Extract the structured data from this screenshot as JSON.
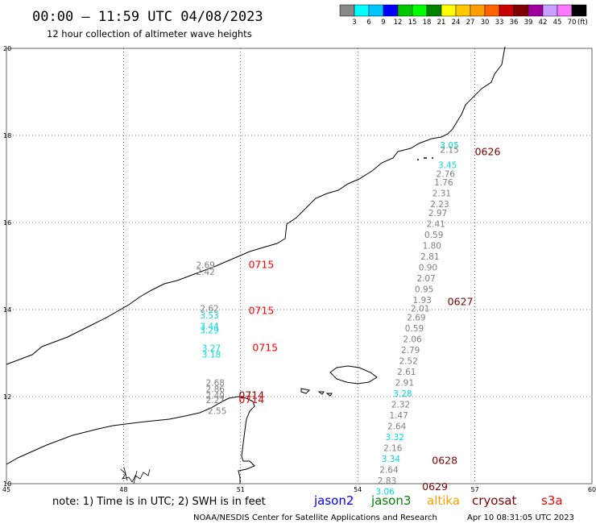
{
  "header": {
    "title": "00:00 – 11:59 UTC 04/08/2023",
    "subtitle": "12 hour collection of altimeter wave heights"
  },
  "colorbar": {
    "colors": [
      "#888888",
      "#00ffff",
      "#00c8ff",
      "#0000ff",
      "#00c800",
      "#00ff00",
      "#008000",
      "#ffff00",
      "#ffc800",
      "#ffa000",
      "#ff6400",
      "#c80000",
      "#800000",
      "#a000a0",
      "#c8a0ff",
      "#ff78ff",
      "#000000"
    ],
    "labels": [
      "3",
      "6",
      "9",
      "12",
      "15",
      "18",
      "21",
      "24",
      "27",
      "30",
      "33",
      "36",
      "39",
      "42",
      "45",
      "70"
    ],
    "unit": "(ft)"
  },
  "axes": {
    "x_ticks": [
      "45",
      "48",
      "51",
      "54",
      "57",
      "60"
    ],
    "y_ticks": [
      "20",
      "18",
      "16",
      "14",
      "12",
      "10"
    ],
    "lon_range": [
      45,
      60
    ],
    "lat_range": [
      10,
      20
    ]
  },
  "measurements": [
    {
      "lon": 56.35,
      "lat": 17.7,
      "v": "3.05",
      "c": "#00dcdc"
    },
    {
      "lon": 56.35,
      "lat": 17.6,
      "v": "2.15",
      "c": "#808080"
    },
    {
      "lon": 56.3,
      "lat": 17.25,
      "v": "3.45",
      "c": "#00dcdc"
    },
    {
      "lon": 56.25,
      "lat": 17.05,
      "v": "2.76",
      "c": "#808080"
    },
    {
      "lon": 56.2,
      "lat": 16.85,
      "v": "1.76",
      "c": "#808080"
    },
    {
      "lon": 56.15,
      "lat": 16.6,
      "v": "2.31",
      "c": "#808080"
    },
    {
      "lon": 56.1,
      "lat": 16.35,
      "v": "2.23",
      "c": "#808080"
    },
    {
      "lon": 56.05,
      "lat": 16.15,
      "v": "2.97",
      "c": "#808080"
    },
    {
      "lon": 56.0,
      "lat": 15.9,
      "v": "2.41",
      "c": "#808080"
    },
    {
      "lon": 55.95,
      "lat": 15.65,
      "v": "0.59",
      "c": "#808080"
    },
    {
      "lon": 55.9,
      "lat": 15.4,
      "v": "1.80",
      "c": "#808080"
    },
    {
      "lon": 55.85,
      "lat": 15.15,
      "v": "2.81",
      "c": "#808080"
    },
    {
      "lon": 55.8,
      "lat": 14.9,
      "v": "0.90",
      "c": "#808080"
    },
    {
      "lon": 55.75,
      "lat": 14.65,
      "v": "2.07",
      "c": "#808080"
    },
    {
      "lon": 55.7,
      "lat": 14.4,
      "v": "0.95",
      "c": "#808080"
    },
    {
      "lon": 55.65,
      "lat": 14.15,
      "v": "1.93",
      "c": "#808080"
    },
    {
      "lon": 55.6,
      "lat": 13.95,
      "v": "2.01",
      "c": "#808080"
    },
    {
      "lon": 55.5,
      "lat": 13.75,
      "v": "2.69",
      "c": "#808080"
    },
    {
      "lon": 55.45,
      "lat": 13.5,
      "v": "0.59",
      "c": "#808080"
    },
    {
      "lon": 55.4,
      "lat": 13.25,
      "v": "2.06",
      "c": "#808080"
    },
    {
      "lon": 55.35,
      "lat": 13.0,
      "v": "2.79",
      "c": "#808080"
    },
    {
      "lon": 55.3,
      "lat": 12.75,
      "v": "2.52",
      "c": "#808080"
    },
    {
      "lon": 55.25,
      "lat": 12.5,
      "v": "2.61",
      "c": "#808080"
    },
    {
      "lon": 55.2,
      "lat": 12.25,
      "v": "2.91",
      "c": "#808080"
    },
    {
      "lon": 55.15,
      "lat": 12.0,
      "v": "3.28",
      "c": "#00dcdc"
    },
    {
      "lon": 55.1,
      "lat": 11.75,
      "v": "2.32",
      "c": "#808080"
    },
    {
      "lon": 55.05,
      "lat": 11.5,
      "v": "1.47",
      "c": "#808080"
    },
    {
      "lon": 55.0,
      "lat": 11.25,
      "v": "2.64",
      "c": "#808080"
    },
    {
      "lon": 54.95,
      "lat": 11.0,
      "v": "3.32",
      "c": "#00dcdc"
    },
    {
      "lon": 54.9,
      "lat": 10.75,
      "v": "2.16",
      "c": "#808080"
    },
    {
      "lon": 54.85,
      "lat": 10.5,
      "v": "3.34",
      "c": "#00dcdc"
    },
    {
      "lon": 54.8,
      "lat": 10.25,
      "v": "2.64",
      "c": "#808080"
    },
    {
      "lon": 54.75,
      "lat": 10.0,
      "v": "2.83",
      "c": "#808080"
    },
    {
      "lon": 54.7,
      "lat": 9.75,
      "v": "3.06",
      "c": "#00dcdc"
    },
    {
      "lon": 50.1,
      "lat": 14.95,
      "v": "2.69",
      "c": "#808080"
    },
    {
      "lon": 50.1,
      "lat": 14.8,
      "v": "2.42",
      "c": "#808080"
    },
    {
      "lon": 50.2,
      "lat": 13.95,
      "v": "2.62",
      "c": "#808080"
    },
    {
      "lon": 50.2,
      "lat": 13.8,
      "v": "3.53",
      "c": "#00dcdc"
    },
    {
      "lon": 50.2,
      "lat": 13.55,
      "v": "3.44",
      "c": "#00dcdc"
    },
    {
      "lon": 50.2,
      "lat": 13.45,
      "v": "3.29",
      "c": "#00dcdc"
    },
    {
      "lon": 50.25,
      "lat": 13.05,
      "v": "3.27",
      "c": "#00dcdc"
    },
    {
      "lon": 50.25,
      "lat": 12.9,
      "v": "3.18",
      "c": "#00dcdc"
    },
    {
      "lon": 50.35,
      "lat": 12.25,
      "v": "2.68",
      "c": "#808080"
    },
    {
      "lon": 50.35,
      "lat": 12.1,
      "v": "2.86",
      "c": "#808080"
    },
    {
      "lon": 50.35,
      "lat": 11.95,
      "v": "2.49",
      "c": "#808080"
    },
    {
      "lon": 50.35,
      "lat": 11.85,
      "v": "2.27",
      "c": "#808080"
    },
    {
      "lon": 50.4,
      "lat": 11.6,
      "v": "2.55",
      "c": "#808080"
    }
  ],
  "pass_times": [
    {
      "lon": 57.0,
      "lat": 17.55,
      "t": "0626",
      "c": "#800000"
    },
    {
      "lon": 56.3,
      "lat": 14.1,
      "t": "0627",
      "c": "#800000"
    },
    {
      "lon": 55.9,
      "lat": 10.45,
      "t": "0628",
      "c": "#800000"
    },
    {
      "lon": 55.65,
      "lat": 9.85,
      "t": "0629",
      "c": "#800000"
    },
    {
      "lon": 51.2,
      "lat": 14.95,
      "t": "0715",
      "c": "#ff0000"
    },
    {
      "lon": 51.2,
      "lat": 13.9,
      "t": "0715",
      "c": "#ff0000"
    },
    {
      "lon": 51.3,
      "lat": 13.05,
      "t": "0715",
      "c": "#ff0000"
    },
    {
      "lon": 50.95,
      "lat": 11.95,
      "t": "0714",
      "c": "#800000"
    },
    {
      "lon": 50.95,
      "lat": 11.85,
      "t": "0714",
      "c": "#ff0000"
    }
  ],
  "footer": {
    "note": "note: 1) Time is in UTC; 2) SWH is in feet",
    "legend": [
      {
        "name": "jason2",
        "color": "#0000ff"
      },
      {
        "name": "jason3",
        "color": "#008000"
      },
      {
        "name": "altika",
        "color": "#ffa000"
      },
      {
        "name": "cryosat",
        "color": "#800000"
      },
      {
        "name": "s3a",
        "color": "#ff0000"
      }
    ],
    "credit": "NOAA/NESDIS Center for Satellite Applications and Research",
    "generated": "Apr 10 08:31:05 UTC 2023"
  }
}
